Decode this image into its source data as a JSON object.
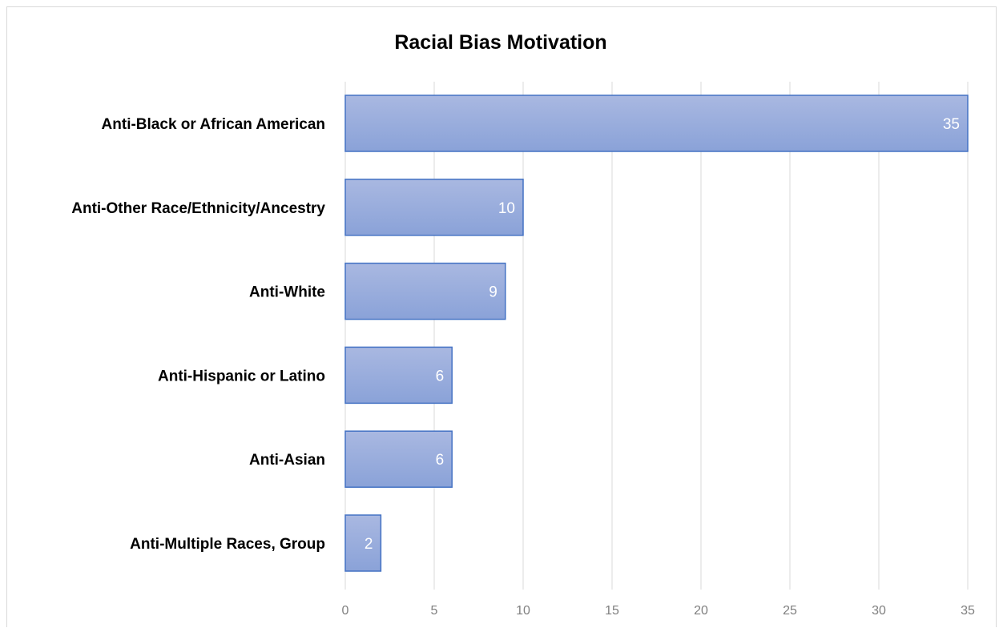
{
  "chart_data": {
    "type": "bar",
    "orientation": "horizontal",
    "title": "Racial Bias Motivation",
    "categories": [
      "Anti-Black or African American",
      "Anti-Other Race/Ethnicity/Ancestry",
      "Anti-White",
      "Anti-Hispanic or Latino",
      "Anti-Asian",
      "Anti-Multiple Races, Group"
    ],
    "values": [
      35,
      10,
      9,
      6,
      6,
      2
    ],
    "xlabel": "",
    "ylabel": "",
    "xlim": [
      0,
      35
    ],
    "xticks": [
      0,
      5,
      10,
      15,
      20,
      25,
      30,
      35
    ],
    "grid": "vertical",
    "legend": "none",
    "data_labels": "inside-end",
    "colors": {
      "bar_top": "#a9b8e1",
      "bar_bottom": "#8aa2d8",
      "bar_border": "#4472c4",
      "gridline": "#d9d9d9",
      "tick_text": "#7f7f7f",
      "value_text": "#ffffff"
    }
  }
}
